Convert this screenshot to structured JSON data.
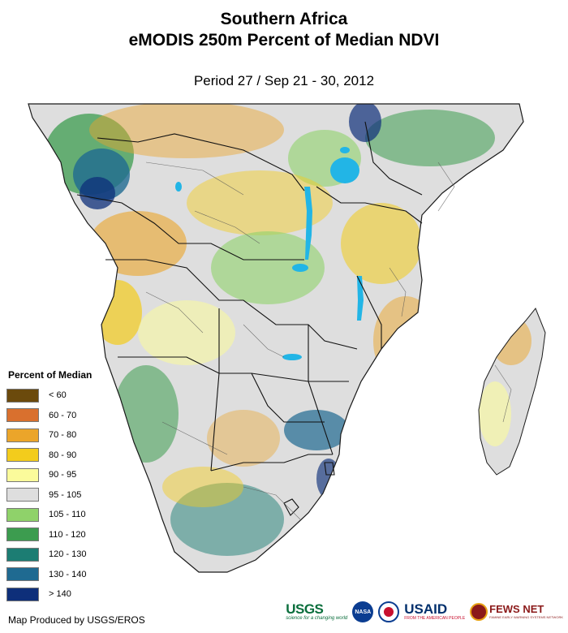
{
  "header": {
    "title_line1": "Southern Africa",
    "title_line2": "eMODIS 250m Percent of Median NDVI",
    "period": "Period 27 / Sep 21 - 30, 2012"
  },
  "legend": {
    "title": "Percent of Median",
    "classes": [
      {
        "label": "< 60",
        "color": "#6b4a0c"
      },
      {
        "label": "60 - 70",
        "color": "#d9702e"
      },
      {
        "label": "70 - 80",
        "color": "#eba52a"
      },
      {
        "label": "80 - 90",
        "color": "#f3cc1c"
      },
      {
        "label": "90 - 95",
        "color": "#fbfb9b"
      },
      {
        "label": "95 - 105",
        "color": "#dedede"
      },
      {
        "label": "105 - 110",
        "color": "#8fd26a"
      },
      {
        "label": "110 - 120",
        "color": "#3c9c4f"
      },
      {
        "label": "120 - 130",
        "color": "#1c7d73"
      },
      {
        "label": "130 - 140",
        "color": "#1f6a91"
      },
      {
        "label": "> 140",
        "color": "#0e2f7a"
      }
    ]
  },
  "map": {
    "water_color": "#22b5e6",
    "border_color": "#1a1a1a"
  },
  "footer": {
    "credit": "Map Produced by USGS/EROS",
    "logos": {
      "usgs": "USGS",
      "usgs_tagline": "science for a changing world",
      "nasa": "NASA",
      "usaid": "USAID",
      "usaid_tagline": "FROM THE AMERICAN PEOPLE",
      "fews": "FEWS NET",
      "fews_tagline": "FAMINE EARLY WARNING SYSTEMS NETWORK"
    }
  }
}
